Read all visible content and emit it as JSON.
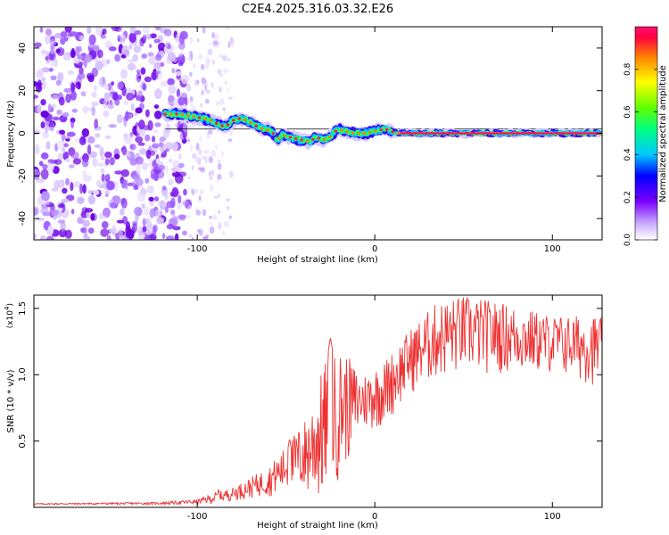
{
  "title": "C2E4.2025.316.03.32.E26",
  "chart_data": [
    {
      "type": "heatmap",
      "xlabel": "Height of straight line (km)",
      "ylabel": "Frequency (Hz)",
      "xlim": [
        -192,
        128
      ],
      "ylim": [
        -50,
        50
      ],
      "xticks": [
        -100,
        0,
        100
      ],
      "yticks": [
        -40,
        -20,
        0,
        20,
        40
      ],
      "noise_region": [
        -192,
        -105
      ],
      "sparse_noise_region": [
        -105,
        -80
      ],
      "trace_start": -118,
      "trace": [
        {
          "x": -118,
          "y": 9
        },
        {
          "x": -110,
          "y": 9
        },
        {
          "x": -103,
          "y": 8
        },
        {
          "x": -97,
          "y": 7
        },
        {
          "x": -92,
          "y": 6
        },
        {
          "x": -88,
          "y": 4
        },
        {
          "x": -84,
          "y": 3
        },
        {
          "x": -80,
          "y": 6
        },
        {
          "x": -76,
          "y": 7
        },
        {
          "x": -72,
          "y": 6
        },
        {
          "x": -68,
          "y": 4
        },
        {
          "x": -63,
          "y": 2
        },
        {
          "x": -58,
          "y": 1
        },
        {
          "x": -55,
          "y": -3
        },
        {
          "x": -52,
          "y": -1
        },
        {
          "x": -47,
          "y": -2
        },
        {
          "x": -42,
          "y": -3
        },
        {
          "x": -37,
          "y": -4
        },
        {
          "x": -33,
          "y": -2
        },
        {
          "x": -28,
          "y": -3
        },
        {
          "x": -24,
          "y": -1
        },
        {
          "x": -21,
          "y": 2
        },
        {
          "x": -17,
          "y": 1
        },
        {
          "x": -12,
          "y": 0
        },
        {
          "x": -6,
          "y": 0
        },
        {
          "x": 0,
          "y": 1
        },
        {
          "x": 6,
          "y": 2
        },
        {
          "x": 12,
          "y": 0
        },
        {
          "x": 128,
          "y": 0
        }
      ],
      "colorbar": {
        "label": "Normalized spectral amplitude",
        "ticks": [
          0.0,
          0.2,
          0.4,
          0.6,
          0.8
        ],
        "range": [
          0,
          1
        ],
        "colors": [
          "#ffffff",
          "#b98fff",
          "#7a00ff",
          "#0000ff",
          "#00c8ff",
          "#00ff80",
          "#60ff00",
          "#ffff00",
          "#ff8000",
          "#ff0040",
          "#ff1070"
        ]
      }
    },
    {
      "type": "line",
      "xlabel": "Height of straight line (km)",
      "ylabel": "SNR (10 * v/v)",
      "ymultiplier": "(x10",
      "ymultiplier_exp": "4",
      "ymultiplier_close": ")",
      "xlim": [
        -192,
        128
      ],
      "ylim": [
        0,
        1.6
      ],
      "xticks": [
        -100,
        0,
        100
      ],
      "yticks": [
        0.5,
        1.0,
        1.5
      ],
      "yticklabels": [
        "0.5",
        "1.0",
        "1.5"
      ],
      "color": "#ee3030",
      "envelope": [
        {
          "x": -192,
          "lo": 0.02,
          "hi": 0.03
        },
        {
          "x": -120,
          "lo": 0.02,
          "hi": 0.04
        },
        {
          "x": -100,
          "lo": 0.02,
          "hi": 0.06
        },
        {
          "x": -88,
          "lo": 0.03,
          "hi": 0.12
        },
        {
          "x": -80,
          "lo": 0.05,
          "hi": 0.15
        },
        {
          "x": -60,
          "lo": 0.08,
          "hi": 0.3
        },
        {
          "x": -48,
          "lo": 0.1,
          "hi": 0.5
        },
        {
          "x": -38,
          "lo": 0.05,
          "hi": 0.7
        },
        {
          "x": -28,
          "lo": 0.0,
          "hi": 1.1
        },
        {
          "x": -18,
          "lo": 0.25,
          "hi": 1.2
        },
        {
          "x": -8,
          "lo": 0.55,
          "hi": 1.0
        },
        {
          "x": 5,
          "lo": 0.6,
          "hi": 1.1
        },
        {
          "x": 20,
          "lo": 0.85,
          "hi": 1.35
        },
        {
          "x": 35,
          "lo": 0.95,
          "hi": 1.55
        },
        {
          "x": 50,
          "lo": 1.0,
          "hi": 1.6
        },
        {
          "x": 70,
          "lo": 1.0,
          "hi": 1.55
        },
        {
          "x": 100,
          "lo": 1.0,
          "hi": 1.45
        },
        {
          "x": 128,
          "lo": 0.9,
          "hi": 1.45
        }
      ],
      "spikes": [
        {
          "x": -88,
          "y": 0.14
        },
        {
          "x": -48,
          "y": 0.52
        },
        {
          "x": -25,
          "y": 1.28
        }
      ]
    }
  ]
}
